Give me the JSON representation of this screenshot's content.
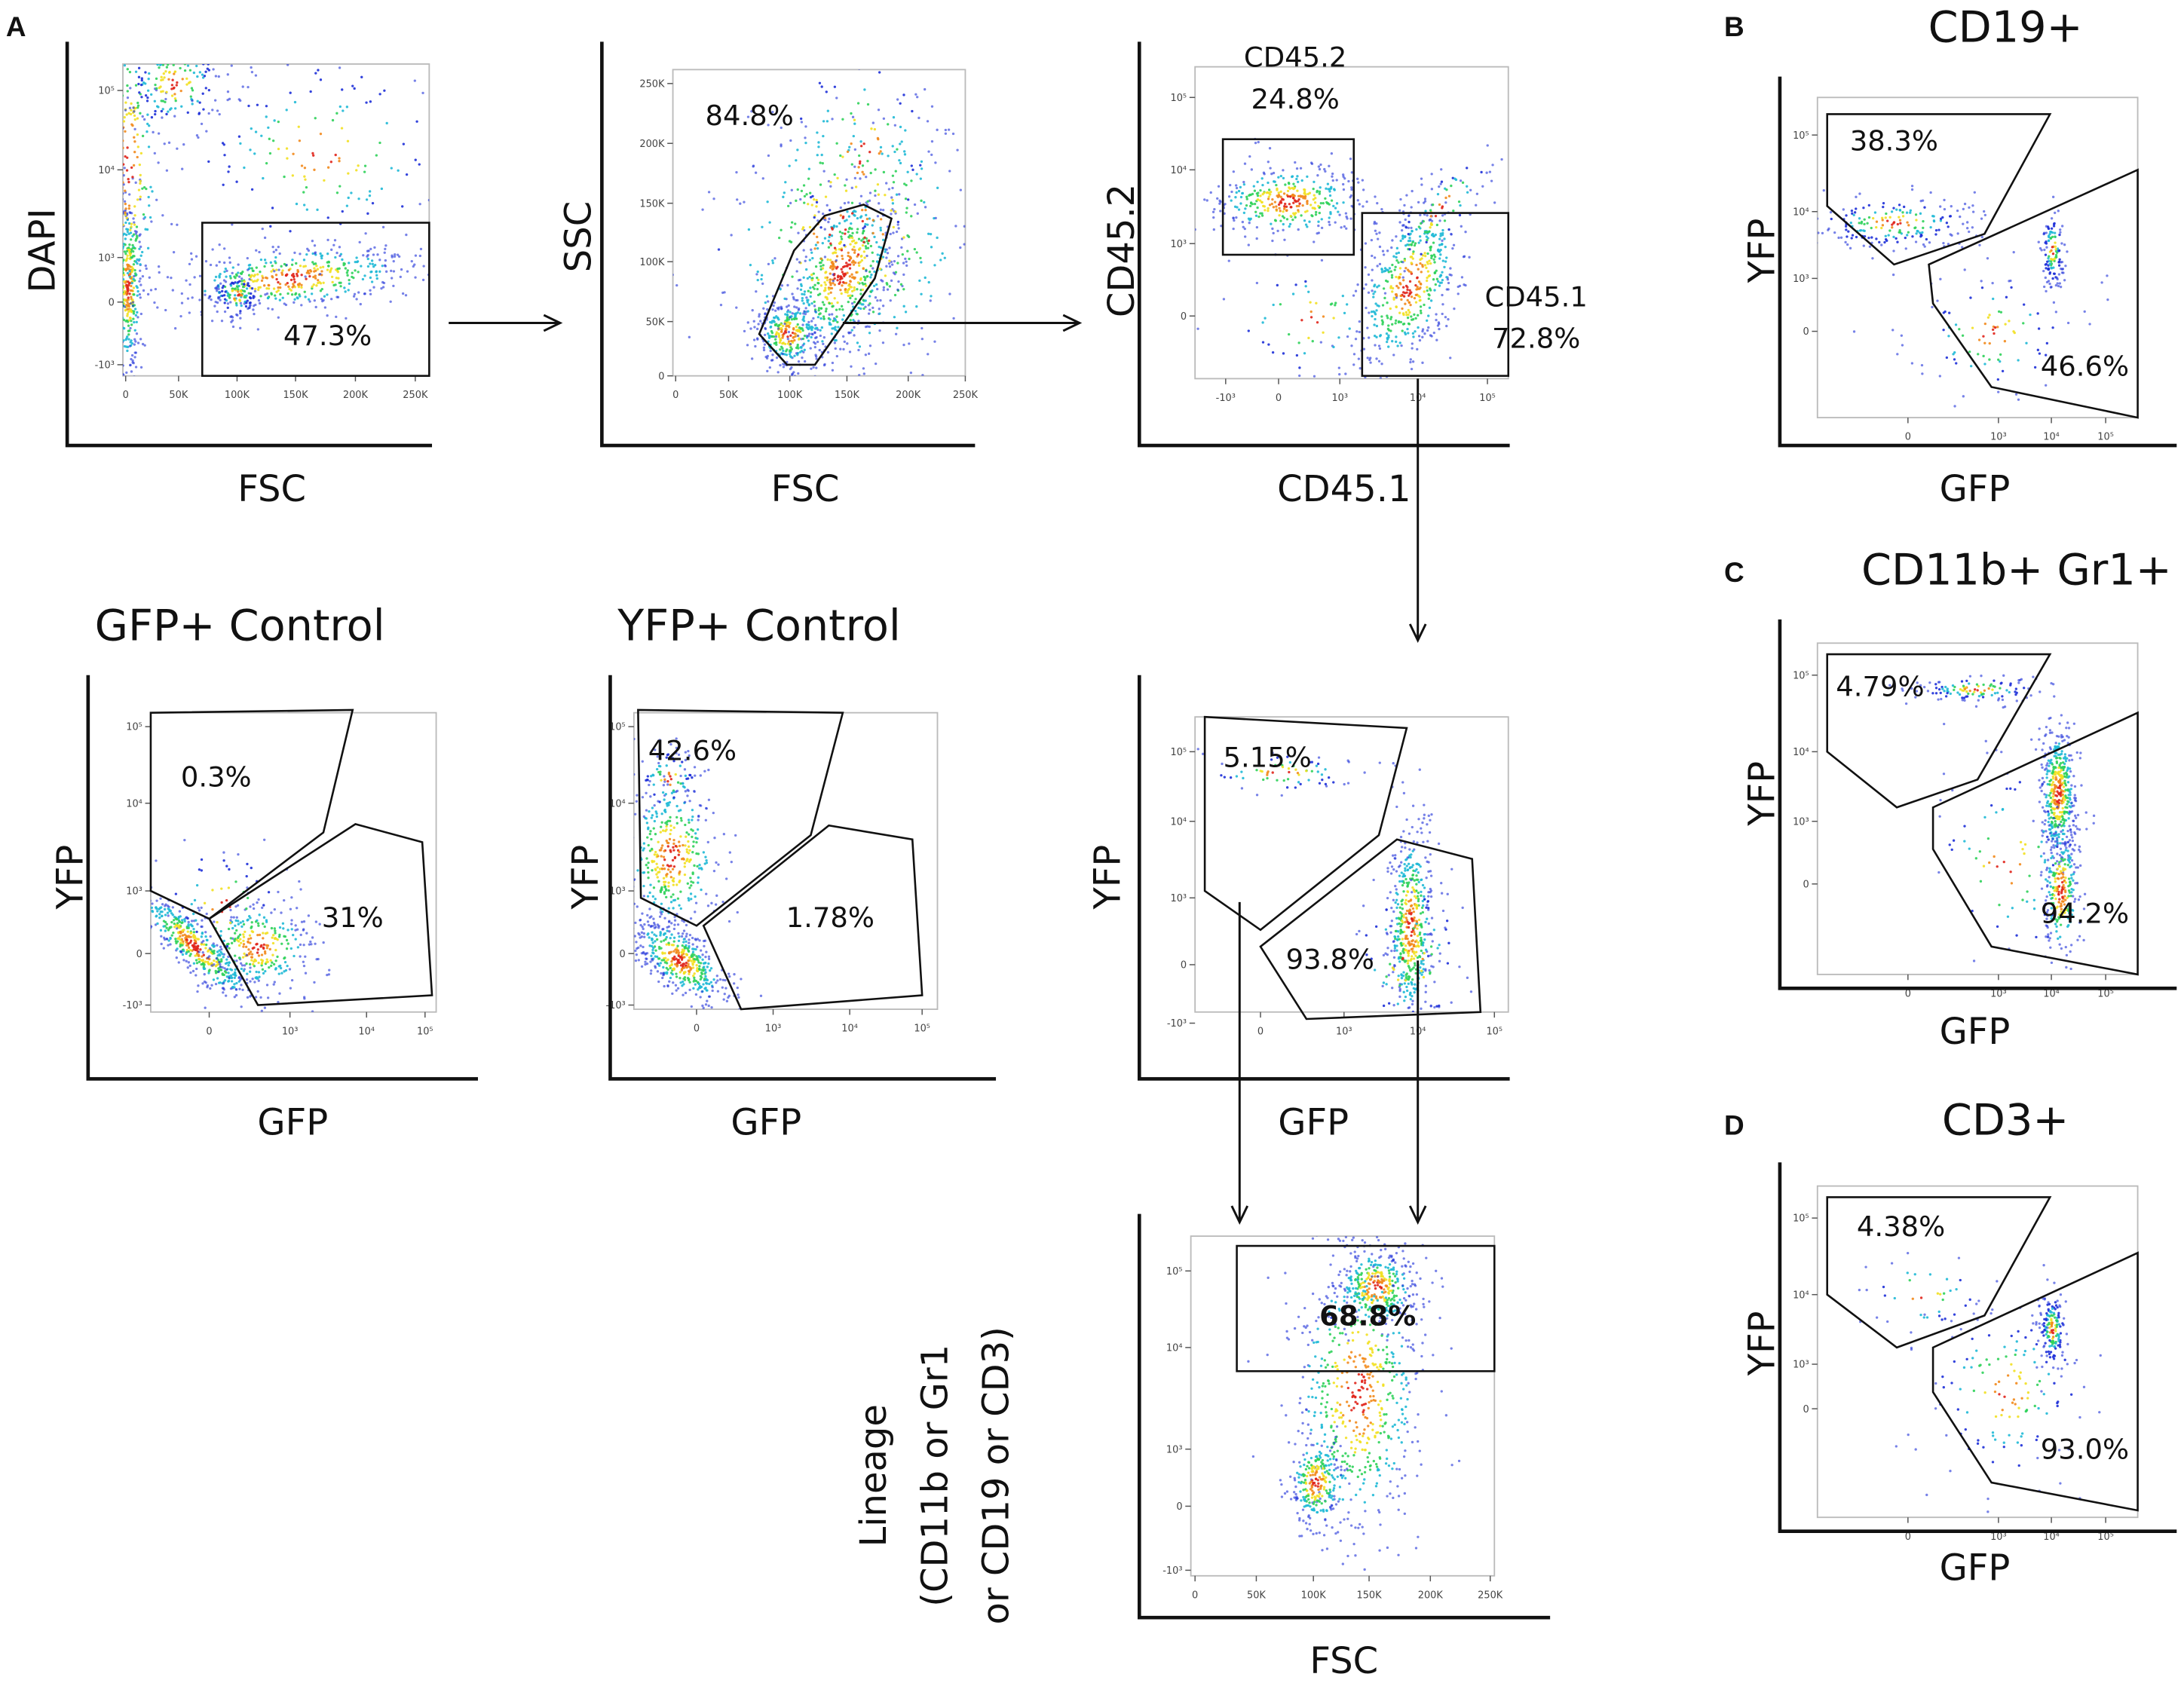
{
  "panel_labels": [
    "A",
    "B",
    "C",
    "D"
  ],
  "colors": {
    "density_high": "#e0241a",
    "density_mid": "#f2e021",
    "density_low": "#2fd15a",
    "density_sparse": "#1d2fd8",
    "gate": "#111111"
  },
  "chart_data": [
    {
      "type": "scatter",
      "title": "",
      "xlabel": "FSC",
      "ylabel": [
        "DAPI"
      ],
      "xticks": [
        "0",
        "50K",
        "100K",
        "150K",
        "200K",
        "250K"
      ],
      "yticks": [
        "10⁵",
        "10⁴",
        "10³",
        "0",
        "-10³"
      ],
      "gates": [
        {
          "name": "",
          "percent": "47.3%"
        }
      ]
    },
    {
      "type": "scatter",
      "title": "",
      "xlabel": "FSC",
      "ylabel": [
        "SSC"
      ],
      "xticks": [
        "0",
        "50K",
        "100K",
        "150K",
        "200K",
        "250K"
      ],
      "yticks": [
        "250K",
        "200K",
        "150K",
        "100K",
        "50K",
        "0"
      ],
      "gates": [
        {
          "name": "",
          "percent": "84.8%"
        }
      ]
    },
    {
      "type": "scatter",
      "title": "",
      "xlabel": "CD45.1",
      "ylabel": [
        "CD45.2"
      ],
      "xticks": [
        "-10³",
        "0",
        "10³",
        "10⁴",
        "10⁵"
      ],
      "yticks": [
        "10⁵",
        "10⁴",
        "10³",
        "0"
      ],
      "gates": [
        {
          "name": "CD45.2",
          "percent": "24.8%"
        },
        {
          "name": "CD45.1",
          "percent": "72.8%"
        }
      ]
    },
    {
      "type": "scatter",
      "title": "GFP+ Control",
      "xlabel": "GFP",
      "ylabel": [
        "YFP"
      ],
      "xticks": [
        "0",
        "10³",
        "10⁴",
        "10⁵"
      ],
      "yticks": [
        "10⁵",
        "10⁴",
        "10³",
        "0",
        "-10³"
      ],
      "gates": [
        {
          "name": "",
          "percent": "0.3%"
        },
        {
          "name": "",
          "percent": "31%"
        }
      ]
    },
    {
      "type": "scatter",
      "title": "YFP+ Control",
      "xlabel": "GFP",
      "ylabel": [
        "YFP"
      ],
      "xticks": [
        "0",
        "10³",
        "10⁴",
        "10⁵"
      ],
      "yticks": [
        "10⁵",
        "10⁴",
        "10³",
        "0",
        "-10³"
      ],
      "gates": [
        {
          "name": "",
          "percent": "42.6%"
        },
        {
          "name": "",
          "percent": "1.78%"
        }
      ]
    },
    {
      "type": "scatter",
      "title": "",
      "xlabel": "GFP",
      "ylabel": [
        "YFP"
      ],
      "xticks": [
        "0",
        "10³",
        "10⁴",
        "10⁵"
      ],
      "yticks": [
        "10⁵",
        "10⁴",
        "10³",
        "0",
        "-10³"
      ],
      "gates": [
        {
          "name": "",
          "percent": "5.15%"
        },
        {
          "name": "",
          "percent": "93.8%"
        }
      ]
    },
    {
      "type": "scatter",
      "title": "",
      "xlabel": "FSC",
      "ylabel": [
        "Lineage",
        "(CD11b or Gr1",
        "or CD19 or CD3)"
      ],
      "xticks": [
        "0",
        "50K",
        "100K",
        "150K",
        "200K",
        "250K"
      ],
      "yticks": [
        "10⁵",
        "10⁴",
        "10³",
        "0",
        "-10³"
      ],
      "gates": [
        {
          "name": "",
          "percent": "68.8%"
        }
      ]
    },
    {
      "type": "scatter",
      "title": "CD19+",
      "xlabel": "GFP",
      "ylabel": [
        "YFP"
      ],
      "xticks": [
        "0",
        "10³",
        "10⁴",
        "10⁵"
      ],
      "yticks": [
        "10⁵",
        "10⁴",
        "10³",
        "0"
      ],
      "gates": [
        {
          "name": "",
          "percent": "38.3%"
        },
        {
          "name": "",
          "percent": "46.6%"
        }
      ]
    },
    {
      "type": "scatter",
      "title": "CD11b+ Gr1+",
      "xlabel": "GFP",
      "ylabel": [
        "YFP"
      ],
      "xticks": [
        "0",
        "10³",
        "10⁴",
        "10⁵"
      ],
      "yticks": [
        "10⁵",
        "10⁴",
        "10³",
        "0"
      ],
      "gates": [
        {
          "name": "",
          "percent": "4.79%"
        },
        {
          "name": "",
          "percent": "94.2%"
        }
      ]
    },
    {
      "type": "scatter",
      "title": "CD3+",
      "xlabel": "GFP",
      "ylabel": [
        "YFP"
      ],
      "xticks": [
        "0",
        "10³",
        "10⁴",
        "10⁵"
      ],
      "yticks": [
        "10⁵",
        "10⁴",
        "10³",
        "0"
      ],
      "gates": [
        {
          "name": "",
          "percent": "4.38%"
        },
        {
          "name": "",
          "percent": "93.0%"
        }
      ]
    }
  ]
}
